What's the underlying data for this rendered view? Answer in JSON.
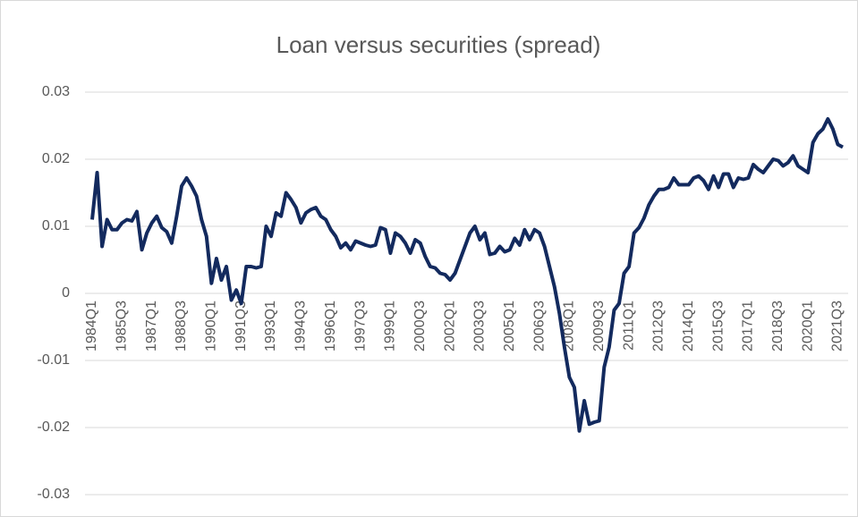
{
  "chart_data": {
    "type": "line",
    "title": "Loan versus securities (spread)",
    "categories": [
      "1984Q1",
      null,
      null,
      null,
      null,
      null,
      "1985Q3",
      null,
      null,
      null,
      null,
      null,
      "1987Q1",
      null,
      null,
      null,
      null,
      null,
      "1988Q3",
      null,
      null,
      null,
      null,
      null,
      "1990Q1",
      null,
      null,
      null,
      null,
      null,
      "1991Q3",
      null,
      null,
      null,
      null,
      null,
      "1993Q1",
      null,
      null,
      null,
      null,
      null,
      "1994Q3",
      null,
      null,
      null,
      null,
      null,
      "1996Q1",
      null,
      null,
      null,
      null,
      null,
      "1997Q3",
      null,
      null,
      null,
      null,
      null,
      "1999Q1",
      null,
      null,
      null,
      null,
      null,
      "2000Q3",
      null,
      null,
      null,
      null,
      null,
      "2002Q1",
      null,
      null,
      null,
      null,
      null,
      "2003Q3",
      null,
      null,
      null,
      null,
      null,
      "2005Q1",
      null,
      null,
      null,
      null,
      null,
      "2006Q3",
      null,
      null,
      null,
      null,
      null,
      "2008Q1",
      null,
      null,
      null,
      null,
      null,
      "2009Q3",
      null,
      null,
      null,
      null,
      null,
      "2011Q1",
      null,
      null,
      null,
      null,
      null,
      "2012Q3",
      null,
      null,
      null,
      null,
      null,
      "2014Q1",
      null,
      null,
      null,
      null,
      null,
      "2015Q3",
      null,
      null,
      null,
      null,
      null,
      "2017Q1",
      null,
      null,
      null,
      null,
      null,
      "2018Q3",
      null,
      null,
      null,
      null,
      null,
      "2020Q1",
      null,
      null,
      null,
      null,
      null,
      "2021Q3",
      null
    ],
    "series": [
      {
        "color": "#132a5e",
        "values": [
          0.011,
          0.018,
          0.007,
          0.011,
          0.0095,
          0.0095,
          0.0105,
          0.011,
          0.0108,
          0.0122,
          0.0065,
          0.009,
          0.0105,
          0.0115,
          0.0098,
          0.0092,
          0.0075,
          0.0115,
          0.016,
          0.0172,
          0.016,
          0.0145,
          0.011,
          0.0085,
          0.0015,
          0.0052,
          0.002,
          0.004,
          -0.001,
          0.0005,
          -0.0015,
          0.004,
          0.004,
          0.0038,
          0.004,
          0.01,
          0.0085,
          0.012,
          0.0115,
          0.015,
          0.014,
          0.0128,
          0.0105,
          0.012,
          0.0125,
          0.0128,
          0.0115,
          0.011,
          0.0095,
          0.0085,
          0.0068,
          0.0075,
          0.0065,
          0.0078,
          0.0075,
          0.0072,
          0.007,
          0.0072,
          0.0098,
          0.0095,
          0.006,
          0.009,
          0.0085,
          0.0075,
          0.006,
          0.008,
          0.0075,
          0.0055,
          0.004,
          0.0038,
          0.003,
          0.0028,
          0.002,
          0.003,
          0.005,
          0.007,
          0.009,
          0.01,
          0.008,
          0.009,
          0.0058,
          0.006,
          0.007,
          0.0062,
          0.0065,
          0.0082,
          0.0072,
          0.0095,
          0.008,
          0.0095,
          0.009,
          0.007,
          0.004,
          0.001,
          -0.003,
          -0.008,
          -0.0125,
          -0.014,
          -0.0205,
          -0.016,
          -0.0195,
          -0.0192,
          -0.019,
          -0.011,
          -0.008,
          -0.0025,
          -0.0015,
          0.003,
          0.004,
          0.009,
          0.0098,
          0.0112,
          0.0132,
          0.0145,
          0.0155,
          0.0155,
          0.0158,
          0.0172,
          0.0162,
          0.0162,
          0.0162,
          0.0172,
          0.0175,
          0.0168,
          0.0155,
          0.0175,
          0.0158,
          0.0178,
          0.0178,
          0.0158,
          0.0172,
          0.017,
          0.0172,
          0.0192,
          0.0185,
          0.018,
          0.019,
          0.02,
          0.0198,
          0.019,
          0.0195,
          0.0205,
          0.019,
          0.0185,
          0.018,
          0.0225,
          0.0238,
          0.0245,
          0.026,
          0.0245,
          0.0222,
          0.0218
        ]
      }
    ],
    "ylim": [
      -0.03,
      0.03
    ],
    "yticks": [
      -0.03,
      -0.02,
      -0.01,
      0,
      0.01,
      0.02,
      0.03
    ],
    "grid": true
  }
}
